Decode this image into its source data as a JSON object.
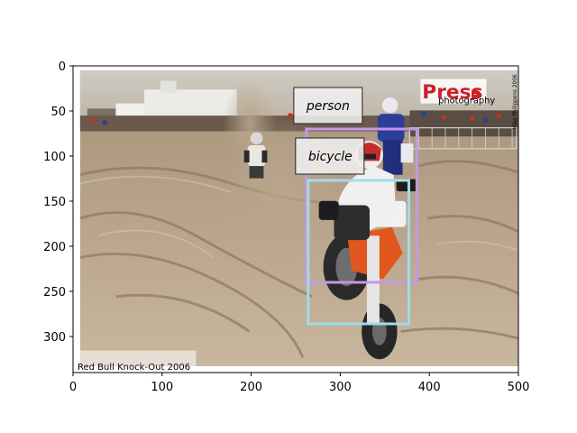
{
  "photo": {
    "caption": "Red Bull Knock-Out 2006",
    "photographer_credit": "Mike Philippens 2006",
    "logo_text": "Press",
    "logo_letter": "P",
    "logo_subtext": "photography"
  },
  "chart_data": {
    "type": "image",
    "xlim": [
      0,
      500
    ],
    "ylim": [
      340,
      0
    ],
    "xticks": [
      0,
      100,
      200,
      300,
      400,
      500
    ],
    "yticks": [
      0,
      50,
      100,
      150,
      200,
      250,
      300
    ],
    "detections": [
      {
        "label": "person",
        "x1": 262,
        "y1": 70,
        "x2": 386,
        "y2": 240,
        "color": "#c597e6"
      },
      {
        "label": "bicycle",
        "x1": 264,
        "y1": 127,
        "x2": 377,
        "y2": 286,
        "color": "#9fdcec"
      }
    ]
  }
}
